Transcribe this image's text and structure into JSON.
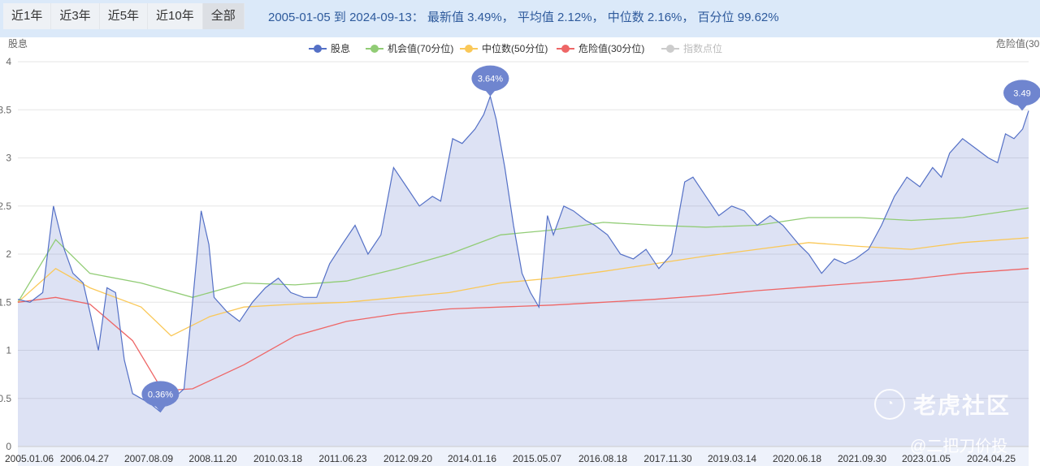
{
  "tabs": [
    {
      "label": "近1年"
    },
    {
      "label": "近3年"
    },
    {
      "label": "近5年"
    },
    {
      "label": "近10年"
    },
    {
      "label": "全部",
      "active": true
    }
  ],
  "summary": "2005-01-05 到 2024-09-13： 最新值 3.49%， 平均值 2.12%， 中位数 2.16%， 百分位 99.62%",
  "watermark": {
    "brand": "老虎社区",
    "author": "@二把刀价投"
  },
  "chart_data": {
    "type": "line",
    "ylabel_left": "股息",
    "ylabel_right": "危险值(30",
    "ylim": [
      0,
      4
    ],
    "yticks": [
      "0",
      "0.5",
      "1",
      "1.5",
      "2",
      "2.5",
      "3",
      "3.5",
      "4"
    ],
    "xlim": [
      "2005-01-05",
      "2024-09-13"
    ],
    "xticks": [
      "2005.01.06",
      "2006.04.27",
      "2007.08.09",
      "2008.11.20",
      "2010.03.18",
      "2011.06.23",
      "2012.09.20",
      "2014.01.16",
      "2015.05.07",
      "2016.08.18",
      "2017.11.30",
      "2019.03.14",
      "2020.06.18",
      "2021.09.30",
      "2023.01.05",
      "2024.04.25"
    ],
    "grid": true,
    "legend_position": "top-center",
    "legend": [
      {
        "name": "股息",
        "color": "#5470c6"
      },
      {
        "name": "机会值(70分位)",
        "color": "#91cc75"
      },
      {
        "name": "中位数(50分位)",
        "color": "#fac858"
      },
      {
        "name": "危险值(30分位)",
        "color": "#ee6666"
      },
      {
        "name": "指数点位",
        "color": "#cccccc"
      }
    ],
    "series": [
      {
        "name": "股息",
        "color": "#5470c6",
        "x": [
          "2005-01-05",
          "2005-04-01",
          "2005-07-01",
          "2005-09-15",
          "2005-12-01",
          "2006-02-01",
          "2006-04-15",
          "2006-06-01",
          "2006-08-01",
          "2006-10-01",
          "2006-12-01",
          "2007-02-01",
          "2007-04-01",
          "2007-06-01",
          "2007-08-01",
          "2007-10-16",
          "2007-12-01",
          "2008-02-01",
          "2008-04-01",
          "2008-06-01",
          "2008-08-01",
          "2008-09-25",
          "2008-11-01",
          "2009-02-01",
          "2009-05-01",
          "2009-08-01",
          "2009-11-01",
          "2010-02-01",
          "2010-05-01",
          "2010-08-01",
          "2010-11-01",
          "2011-02-01",
          "2011-05-01",
          "2011-08-01",
          "2011-11-01",
          "2012-02-01",
          "2012-05-01",
          "2012-08-01",
          "2012-11-01",
          "2013-02-01",
          "2013-04-01",
          "2013-06-25",
          "2013-09-01",
          "2013-12-01",
          "2014-02-01",
          "2014-03-20",
          "2014-05-01",
          "2014-07-01",
          "2014-09-01",
          "2014-11-01",
          "2014-12-31",
          "2015-03-01",
          "2015-05-01",
          "2015-06-12",
          "2015-08-25",
          "2015-11-01",
          "2016-01-28",
          "2016-04-01",
          "2016-07-01",
          "2016-10-01",
          "2017-01-01",
          "2017-04-01",
          "2017-07-01",
          "2017-10-01",
          "2018-01-01",
          "2018-03-01",
          "2018-06-01",
          "2018-09-01",
          "2018-12-01",
          "2019-03-01",
          "2019-06-01",
          "2019-09-01",
          "2019-12-01",
          "2020-03-23",
          "2020-06-01",
          "2020-09-01",
          "2020-12-01",
          "2021-02-15",
          "2021-05-01",
          "2021-08-01",
          "2021-11-01",
          "2022-02-01",
          "2022-05-01",
          "2022-08-01",
          "2022-10-31",
          "2023-01-01",
          "2023-03-01",
          "2023-06-01",
          "2023-09-01",
          "2023-12-01",
          "2024-02-05",
          "2024-04-01",
          "2024-06-01",
          "2024-08-01",
          "2024-09-13"
        ],
        "values": [
          1.53,
          1.5,
          1.6,
          2.5,
          2.05,
          1.8,
          1.7,
          1.4,
          1.0,
          1.65,
          1.6,
          0.9,
          0.55,
          0.5,
          0.45,
          0.36,
          0.45,
          0.52,
          0.6,
          1.5,
          2.45,
          2.1,
          1.55,
          1.4,
          1.3,
          1.5,
          1.65,
          1.75,
          1.6,
          1.55,
          1.55,
          1.9,
          2.1,
          2.3,
          2.0,
          2.2,
          2.9,
          2.7,
          2.5,
          2.6,
          2.55,
          3.2,
          3.15,
          3.3,
          3.45,
          3.64,
          3.4,
          2.9,
          2.3,
          1.8,
          1.6,
          1.45,
          2.4,
          2.2,
          2.5,
          2.45,
          2.35,
          2.3,
          2.2,
          2.0,
          1.95,
          2.05,
          1.85,
          2.0,
          2.75,
          2.8,
          2.6,
          2.4,
          2.5,
          2.45,
          2.3,
          2.4,
          2.3,
          2.1,
          2.0,
          1.8,
          1.95,
          1.9,
          1.95,
          2.05,
          2.3,
          2.6,
          2.8,
          2.7,
          2.9,
          2.8,
          3.05,
          3.2,
          3.1,
          3.0,
          2.95,
          3.25,
          3.2,
          3.3,
          3.49
        ]
      },
      {
        "name": "机会值(70分位)",
        "color": "#91cc75",
        "x": [
          "2005-01-05",
          "2005-10-01",
          "2006-06-01",
          "2007-06-01",
          "2008-06-01",
          "2009-06-01",
          "2010-06-01",
          "2011-06-01",
          "2012-06-01",
          "2013-06-01",
          "2014-06-01",
          "2015-06-01",
          "2016-06-01",
          "2017-06-01",
          "2018-06-01",
          "2019-06-01",
          "2020-06-01",
          "2021-06-01",
          "2022-06-01",
          "2023-06-01",
          "2024-09-13"
        ],
        "values": [
          1.5,
          2.15,
          1.8,
          1.7,
          1.55,
          1.7,
          1.68,
          1.72,
          1.85,
          2.0,
          2.2,
          2.25,
          2.33,
          2.3,
          2.28,
          2.3,
          2.38,
          2.38,
          2.35,
          2.38,
          2.48
        ]
      },
      {
        "name": "中位数(50分位)",
        "color": "#fac858",
        "x": [
          "2005-01-05",
          "2005-10-01",
          "2006-06-01",
          "2007-06-01",
          "2008-01-01",
          "2008-10-01",
          "2009-06-01",
          "2010-06-01",
          "2011-06-01",
          "2012-06-01",
          "2013-06-01",
          "2014-06-01",
          "2015-06-01",
          "2016-06-01",
          "2017-06-01",
          "2018-06-01",
          "2019-06-01",
          "2020-06-01",
          "2021-06-01",
          "2022-06-01",
          "2023-06-01",
          "2024-09-13"
        ],
        "values": [
          1.5,
          1.85,
          1.65,
          1.45,
          1.15,
          1.35,
          1.45,
          1.48,
          1.5,
          1.55,
          1.6,
          1.7,
          1.75,
          1.82,
          1.9,
          1.98,
          2.05,
          2.12,
          2.08,
          2.05,
          2.12,
          2.17
        ]
      },
      {
        "name": "危险值(30分位)",
        "color": "#ee6666",
        "x": [
          "2005-01-05",
          "2005-10-01",
          "2006-06-01",
          "2007-04-01",
          "2007-11-01",
          "2008-06-01",
          "2009-06-01",
          "2010-06-01",
          "2011-06-01",
          "2012-06-01",
          "2013-06-01",
          "2014-06-01",
          "2015-06-01",
          "2016-06-01",
          "2017-06-01",
          "2018-06-01",
          "2019-06-01",
          "2020-06-01",
          "2021-06-01",
          "2022-06-01",
          "2023-06-01",
          "2024-09-13"
        ],
        "values": [
          1.5,
          1.55,
          1.48,
          1.1,
          0.58,
          0.6,
          0.85,
          1.15,
          1.3,
          1.38,
          1.43,
          1.45,
          1.47,
          1.5,
          1.53,
          1.57,
          1.62,
          1.66,
          1.7,
          1.74,
          1.8,
          1.85
        ]
      }
    ],
    "markers": [
      {
        "label": "3.64%",
        "x": "2014-03-20",
        "y": 3.64
      },
      {
        "label": "0.36%",
        "x": "2007-10-16",
        "y": 0.36
      },
      {
        "label": "3.49",
        "x": "2024-09-13",
        "y": 3.49
      }
    ]
  }
}
